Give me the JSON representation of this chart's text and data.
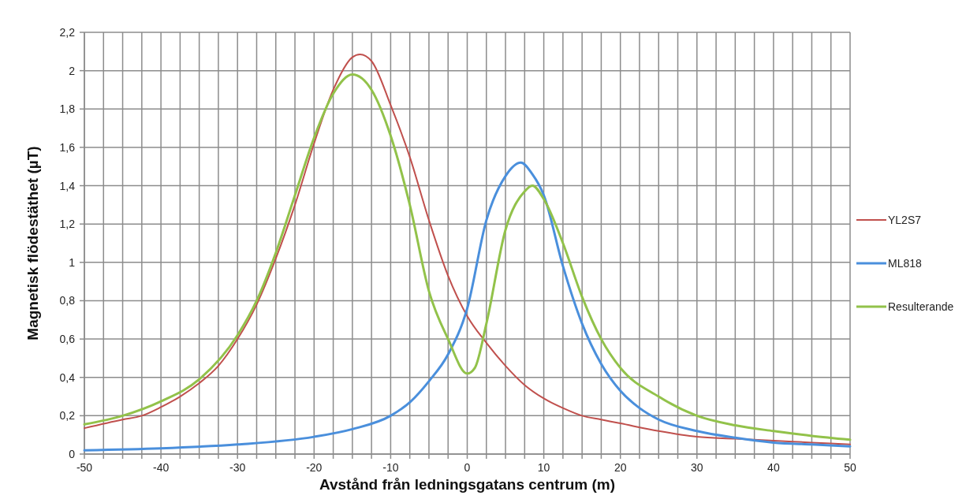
{
  "chart_data": {
    "type": "line",
    "xlabel": "Avstånd från ledningsgatans centrum (m)",
    "ylabel": "Magnetisk flödestäthet (µT)",
    "xlim": [
      -50,
      50
    ],
    "xticks": [
      -50,
      {
        "value": -47.5,
        "label": null
      },
      {
        "value": -45,
        "label": null
      },
      {
        "value": -42.5,
        "label": null
      },
      -40,
      {
        "value": -37.5,
        "label": null
      },
      {
        "value": -35,
        "label": null
      },
      {
        "value": -32.5,
        "label": null
      },
      -30,
      {
        "value": -27.5,
        "label": null
      },
      {
        "value": -25,
        "label": null
      },
      {
        "value": -22.5,
        "label": null
      },
      -20,
      {
        "value": -17.5,
        "label": null
      },
      {
        "value": -15,
        "label": null
      },
      {
        "value": -12.5,
        "label": null
      },
      -10,
      {
        "value": -7.5,
        "label": null
      },
      {
        "value": -5,
        "label": null
      },
      {
        "value": -2.5,
        "label": null
      },
      0,
      {
        "value": 2.5,
        "label": null
      },
      {
        "value": 5,
        "label": null
      },
      {
        "value": 7.5,
        "label": null
      },
      10,
      {
        "value": 12.5,
        "label": null
      },
      {
        "value": 15,
        "label": null
      },
      {
        "value": 17.5,
        "label": null
      },
      20,
      {
        "value": 22.5,
        "label": null
      },
      {
        "value": 25,
        "label": null
      },
      {
        "value": 27.5,
        "label": null
      },
      30,
      {
        "value": 32.5,
        "label": null
      },
      {
        "value": 35,
        "label": null
      },
      {
        "value": 37.5,
        "label": null
      },
      40,
      {
        "value": 42.5,
        "label": null
      },
      {
        "value": 45,
        "label": null
      },
      {
        "value": 47.5,
        "label": null
      },
      50
    ],
    "ylim": [
      0,
      2.2
    ],
    "yticks": [
      0,
      {
        "value": 0.2,
        "label": "0,2"
      },
      {
        "value": 0.4,
        "label": "0,4"
      },
      {
        "value": 0.6,
        "label": "0,6"
      },
      {
        "value": 0.8,
        "label": "0,8"
      },
      1,
      {
        "value": 1.2,
        "label": "1,2"
      },
      {
        "value": 1.4,
        "label": "1,4"
      },
      {
        "value": 1.6,
        "label": "1,6"
      },
      {
        "value": 1.8,
        "label": "1,8"
      },
      2,
      {
        "value": 2.2,
        "label": "2,2"
      }
    ],
    "grid": true,
    "legend": "right",
    "line_style": "solid",
    "series": [
      {
        "name": "YL2S7",
        "color": "#c0504d",
        "x": [
          -50,
          -45,
          -42.5,
          -40,
          -37.5,
          -35,
          -32.5,
          -30,
          -27.5,
          -25,
          -22.5,
          -20,
          -17.5,
          -15,
          -14,
          -12.5,
          -10,
          -7.5,
          -5,
          -2.5,
          0,
          2.5,
          5,
          7.5,
          10,
          12.5,
          15,
          17.5,
          20,
          25,
          30,
          35,
          40,
          45,
          50
        ],
        "values": [
          0.135,
          0.18,
          0.2,
          0.245,
          0.3,
          0.37,
          0.46,
          0.6,
          0.78,
          1.02,
          1.3,
          1.62,
          1.9,
          2.07,
          2.085,
          2.05,
          1.82,
          1.55,
          1.22,
          0.93,
          0.72,
          0.58,
          0.46,
          0.36,
          0.29,
          0.24,
          0.2,
          0.18,
          0.16,
          0.12,
          0.09,
          0.08,
          0.07,
          0.06,
          0.05
        ]
      },
      {
        "name": "ML818",
        "color": "#4a8fdc",
        "x": [
          -50,
          -40,
          -30,
          -20,
          -15,
          -10,
          -7.5,
          -5,
          -2.5,
          0,
          2.5,
          5,
          7,
          8.5,
          10,
          12.5,
          15,
          17.5,
          20,
          22.5,
          25,
          30,
          35,
          40,
          45,
          50
        ],
        "values": [
          0.02,
          0.03,
          0.05,
          0.09,
          0.13,
          0.2,
          0.27,
          0.38,
          0.52,
          0.76,
          1.22,
          1.45,
          1.52,
          1.46,
          1.35,
          0.98,
          0.68,
          0.47,
          0.33,
          0.24,
          0.18,
          0.12,
          0.085,
          0.06,
          0.05,
          0.04
        ]
      },
      {
        "name": "Resulterande",
        "color": "#92c24a",
        "x": [
          -50,
          -45,
          -40,
          -35,
          -30,
          -27.5,
          -25,
          -22.5,
          -20,
          -17.5,
          -15,
          -12.5,
          -10,
          -7.5,
          -5,
          -2.5,
          0,
          1,
          2.5,
          5,
          7.5,
          8.5,
          10,
          12.5,
          15,
          17.5,
          20,
          25,
          30,
          35,
          40,
          45,
          50
        ],
        "values": [
          0.155,
          0.2,
          0.275,
          0.39,
          0.62,
          0.8,
          1.05,
          1.35,
          1.65,
          1.88,
          1.98,
          1.9,
          1.66,
          1.3,
          0.85,
          0.6,
          0.42,
          0.45,
          0.68,
          1.17,
          1.37,
          1.4,
          1.33,
          1.1,
          0.82,
          0.6,
          0.45,
          0.3,
          0.2,
          0.15,
          0.12,
          0.095,
          0.075
        ]
      }
    ]
  }
}
